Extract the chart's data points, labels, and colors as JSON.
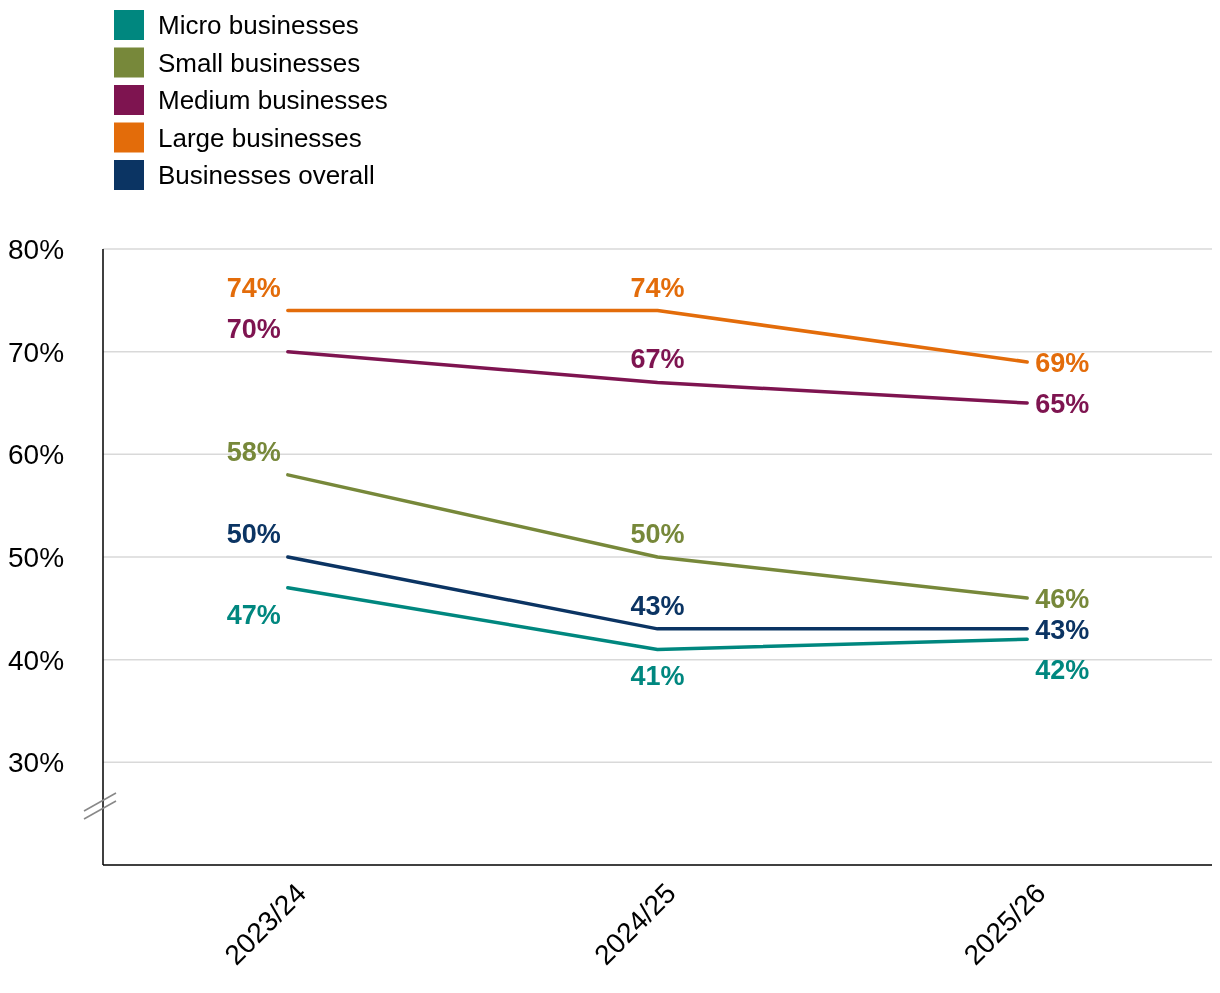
{
  "chart_data": {
    "type": "line",
    "categories": [
      "2023/24",
      "2024/25",
      "2025/26"
    ],
    "series": [
      {
        "name": "Micro businesses",
        "color": "#00877f",
        "values": [
          47,
          41,
          42
        ],
        "value_labels": [
          "47%",
          "41%",
          "42%"
        ]
      },
      {
        "name": "Small businesses",
        "color": "#77883a",
        "values": [
          58,
          50,
          46
        ],
        "value_labels": [
          "58%",
          "50%",
          "46%"
        ]
      },
      {
        "name": "Medium businesses",
        "color": "#7e1450",
        "values": [
          70,
          67,
          65
        ],
        "value_labels": [
          "70%",
          "67%",
          "65%"
        ]
      },
      {
        "name": "Large businesses",
        "color": "#e36c0a",
        "values": [
          74,
          74,
          69
        ],
        "value_labels": [
          "74%",
          "74%",
          "69%"
        ]
      },
      {
        "name": "Businesses overall",
        "color": "#0b3463",
        "values": [
          50,
          43,
          43
        ],
        "value_labels": [
          "50%",
          "43%",
          "43%"
        ]
      }
    ],
    "ylim": [
      20,
      80
    ],
    "yticks": [
      {
        "value": 30,
        "label": "30%"
      },
      {
        "value": 40,
        "label": "40%"
      },
      {
        "value": 50,
        "label": "50%"
      },
      {
        "value": 60,
        "label": "60%"
      },
      {
        "value": 70,
        "label": "70%"
      },
      {
        "value": 80,
        "label": "80%"
      }
    ],
    "grid": "y",
    "legend": "top left"
  }
}
